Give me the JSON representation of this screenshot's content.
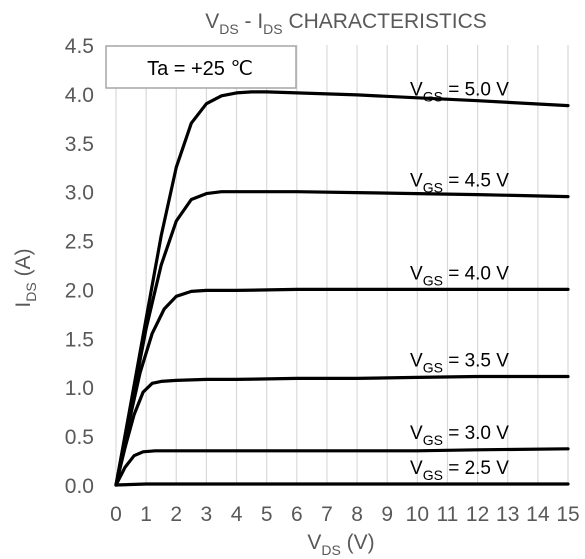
{
  "chart_data": {
    "type": "line",
    "title": {
      "main": "V",
      "sub": "DS",
      "sep": " - I",
      "sub2": "DS",
      "rest": " CHARACTERISTICS"
    },
    "xlabel": {
      "main": "V",
      "sub": "DS",
      "rest": " (V)"
    },
    "ylabel": {
      "main": "I",
      "sub": "DS",
      "rest": " (A)"
    },
    "xlim": [
      0,
      15
    ],
    "ylim": [
      0,
      4.5
    ],
    "xticks": [
      "0",
      "1",
      "2",
      "3",
      "4",
      "5",
      "6",
      "7",
      "8",
      "9",
      "10",
      "11",
      "12",
      "13",
      "14",
      "15"
    ],
    "yticks": [
      "0.0",
      "0.5",
      "1.0",
      "1.5",
      "2.0",
      "2.5",
      "3.0",
      "3.5",
      "4.0",
      "4.5"
    ],
    "grid": "vertical",
    "annotation": "Ta = +25 ℃",
    "series": [
      {
        "name": "2.5",
        "label": {
          "main": "V",
          "sub": "GS",
          "rest": " = 2.5 V"
        },
        "x": [
          0,
          1,
          2,
          4,
          6,
          8,
          10,
          12,
          15
        ],
        "y": [
          0,
          0.01,
          0.01,
          0.01,
          0.01,
          0.01,
          0.01,
          0.01,
          0.01
        ]
      },
      {
        "name": "3.0",
        "label": {
          "main": "V",
          "sub": "GS",
          "rest": " = 3.0 V"
        },
        "x": [
          0,
          0.3,
          0.6,
          0.9,
          1.3,
          2,
          3,
          4,
          6,
          8,
          10,
          12,
          15
        ],
        "y": [
          0,
          0.18,
          0.3,
          0.34,
          0.35,
          0.35,
          0.35,
          0.35,
          0.35,
          0.35,
          0.35,
          0.36,
          0.37
        ]
      },
      {
        "name": "3.5",
        "label": {
          "main": "V",
          "sub": "GS",
          "rest": " = 3.5 V"
        },
        "x": [
          0,
          0.3,
          0.6,
          0.9,
          1.2,
          1.5,
          2,
          3,
          4,
          6,
          8,
          10,
          12,
          15
        ],
        "y": [
          0,
          0.38,
          0.72,
          0.95,
          1.04,
          1.06,
          1.07,
          1.08,
          1.08,
          1.09,
          1.09,
          1.1,
          1.11,
          1.11
        ]
      },
      {
        "name": "4.0",
        "label": {
          "main": "V",
          "sub": "GS",
          "rest": " = 4.0 V"
        },
        "x": [
          0,
          0.4,
          0.8,
          1.2,
          1.6,
          2,
          2.5,
          3,
          4,
          6,
          8,
          10,
          12,
          15
        ],
        "y": [
          0,
          0.6,
          1.15,
          1.55,
          1.8,
          1.93,
          1.98,
          1.99,
          1.99,
          2.0,
          2.0,
          2.0,
          2.0,
          2.0
        ]
      },
      {
        "name": "4.5",
        "label": {
          "main": "V",
          "sub": "GS",
          "rest": " = 4.5 V"
        },
        "x": [
          0,
          0.5,
          1,
          1.5,
          2,
          2.5,
          3,
          3.5,
          4,
          6,
          8,
          10,
          12,
          15
        ],
        "y": [
          0,
          0.8,
          1.6,
          2.25,
          2.7,
          2.92,
          2.98,
          3.0,
          3.0,
          3.0,
          2.99,
          2.98,
          2.97,
          2.95
        ]
      },
      {
        "name": "5.0",
        "label": {
          "main": "V",
          "sub": "GS",
          "rest": " = 5.0 V"
        },
        "x": [
          0,
          0.5,
          1,
          1.5,
          2,
          2.5,
          3,
          3.5,
          4,
          4.5,
          5,
          6,
          8,
          10,
          12,
          15
        ],
        "y": [
          0,
          0.85,
          1.7,
          2.55,
          3.25,
          3.7,
          3.9,
          3.98,
          4.01,
          4.02,
          4.02,
          4.01,
          3.99,
          3.96,
          3.93,
          3.88
        ]
      }
    ]
  }
}
